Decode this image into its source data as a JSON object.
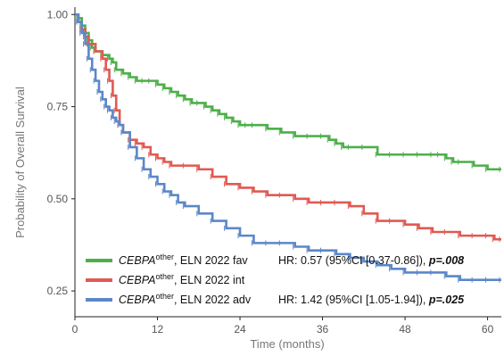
{
  "chart_data": {
    "type": "line",
    "xlabel": "Time (months)",
    "ylabel": "Probability of Overall Survival",
    "xlim": [
      0,
      62
    ],
    "ylim": [
      0.18,
      1.02
    ],
    "xticks": [
      "0",
      "12",
      "24",
      "36",
      "48",
      "60"
    ],
    "yticks": [
      "0.25",
      "0.50",
      "0.75",
      "1.00"
    ],
    "grid": false,
    "legend_position": "bottom",
    "series": [
      {
        "color": "#4daf4a",
        "legend": {
          "gene": "CEBPA",
          "sup": "other",
          "group": ", ELN 2022 fav",
          "hr": "HR: 0.57 (95%CI [0.37-0.86]), ",
          "p": "p=.008"
        },
        "x": [
          0,
          0.5,
          1,
          1.5,
          2,
          2.5,
          3,
          4,
          5,
          5.5,
          6,
          7,
          8,
          9,
          10,
          11,
          12,
          13,
          14,
          15,
          16,
          17,
          18,
          19,
          20,
          21,
          22,
          23,
          24,
          25,
          26,
          28,
          30,
          32,
          34,
          36,
          37,
          38,
          39,
          40,
          42,
          44,
          46,
          48,
          50,
          52,
          53,
          54,
          55,
          56,
          58,
          60,
          62
        ],
        "y": [
          1.0,
          0.99,
          0.97,
          0.95,
          0.93,
          0.91,
          0.9,
          0.89,
          0.88,
          0.87,
          0.85,
          0.84,
          0.83,
          0.82,
          0.82,
          0.82,
          0.81,
          0.8,
          0.79,
          0.78,
          0.77,
          0.76,
          0.76,
          0.75,
          0.74,
          0.73,
          0.72,
          0.71,
          0.7,
          0.7,
          0.7,
          0.69,
          0.68,
          0.67,
          0.67,
          0.67,
          0.66,
          0.65,
          0.64,
          0.64,
          0.64,
          0.62,
          0.62,
          0.62,
          0.62,
          0.62,
          0.62,
          0.61,
          0.6,
          0.6,
          0.59,
          0.58,
          0.58
        ]
      },
      {
        "color": "#e05a52",
        "legend": {
          "gene": "CEBPA",
          "sup": "other",
          "group": ", ELN 2022 int",
          "hr": "",
          "p": ""
        },
        "x": [
          0,
          0.5,
          1,
          1.5,
          2,
          3,
          4,
          4.5,
          5,
          5.5,
          6,
          6.5,
          7,
          8,
          9,
          10,
          11,
          12,
          13,
          14,
          16,
          18,
          20,
          22,
          24,
          26,
          28,
          30,
          32,
          34,
          36,
          38,
          40,
          42,
          44,
          46,
          48,
          50,
          52,
          54,
          56,
          58,
          60,
          61,
          62
        ],
        "y": [
          1.0,
          0.98,
          0.96,
          0.94,
          0.92,
          0.9,
          0.88,
          0.85,
          0.82,
          0.78,
          0.74,
          0.7,
          0.68,
          0.66,
          0.65,
          0.64,
          0.62,
          0.61,
          0.6,
          0.59,
          0.59,
          0.58,
          0.56,
          0.54,
          0.53,
          0.52,
          0.51,
          0.51,
          0.5,
          0.49,
          0.49,
          0.49,
          0.48,
          0.46,
          0.44,
          0.44,
          0.43,
          0.42,
          0.41,
          0.41,
          0.4,
          0.4,
          0.4,
          0.39,
          0.39
        ]
      },
      {
        "color": "#5b87c8",
        "legend": {
          "gene": "CEBPA",
          "sup": "other",
          "group": ", ELN 2022 adv",
          "hr": "HR: 1.42 (95%CI [1.05-1.94]), ",
          "p": "p=.025"
        },
        "x": [
          0,
          0.5,
          1,
          1.5,
          2,
          2.5,
          3,
          3.5,
          4,
          4.5,
          5,
          5.5,
          6,
          6.5,
          7,
          8,
          9,
          10,
          11,
          12,
          13,
          14,
          15,
          16,
          18,
          20,
          22,
          24,
          26,
          28,
          30,
          32,
          34,
          36,
          38,
          40,
          42,
          44,
          46,
          48,
          50,
          52,
          54,
          56,
          58,
          60,
          62
        ],
        "y": [
          1.0,
          0.98,
          0.95,
          0.92,
          0.88,
          0.85,
          0.82,
          0.79,
          0.77,
          0.75,
          0.74,
          0.72,
          0.71,
          0.7,
          0.68,
          0.64,
          0.61,
          0.58,
          0.56,
          0.54,
          0.52,
          0.51,
          0.49,
          0.48,
          0.46,
          0.44,
          0.42,
          0.4,
          0.38,
          0.38,
          0.38,
          0.37,
          0.36,
          0.36,
          0.35,
          0.34,
          0.33,
          0.32,
          0.31,
          0.3,
          0.3,
          0.3,
          0.29,
          0.28,
          0.28,
          0.28,
          0.28
        ]
      }
    ]
  }
}
